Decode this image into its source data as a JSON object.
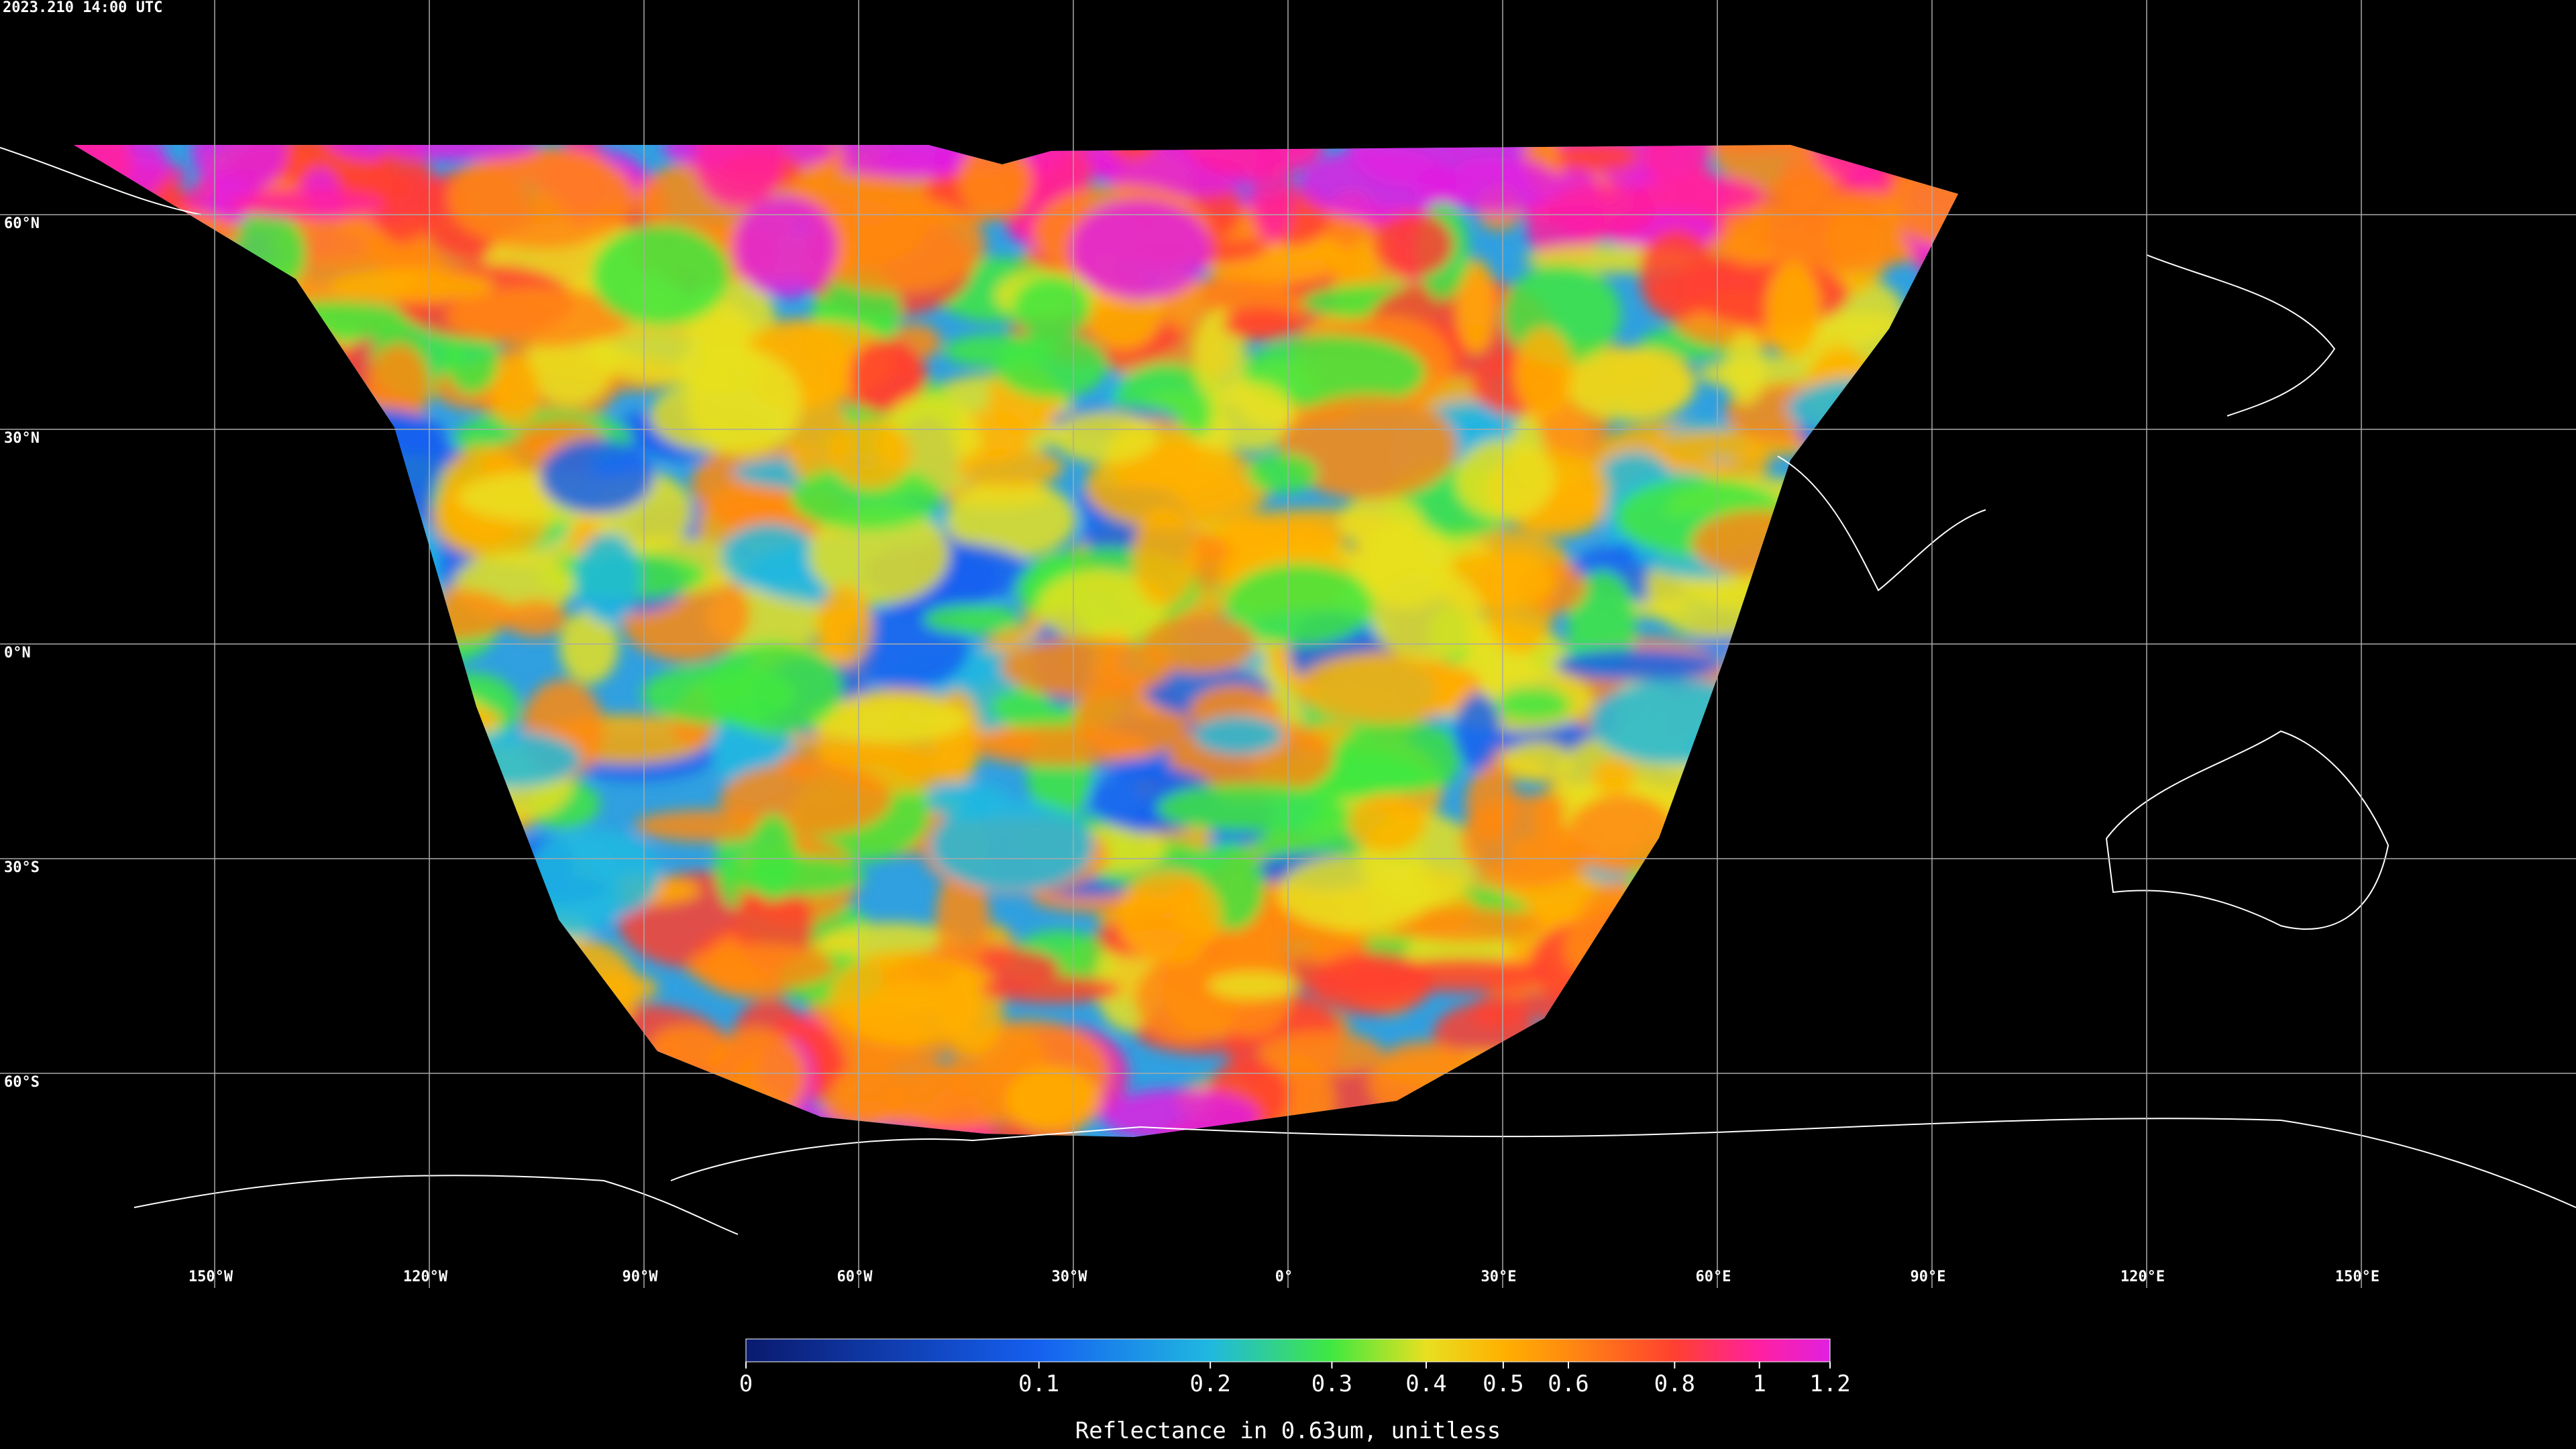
{
  "timestamp": "2023.210 14:00 UTC",
  "map": {
    "latitudes": [
      {
        "value": 60,
        "label": "60°N"
      },
      {
        "value": 30,
        "label": "30°N"
      },
      {
        "value": 0,
        "label": "0°N"
      },
      {
        "value": -30,
        "label": "30°S"
      },
      {
        "value": -60,
        "label": "60°S"
      }
    ],
    "longitudes": [
      {
        "value": -150,
        "label": "150°W"
      },
      {
        "value": -120,
        "label": "120°W"
      },
      {
        "value": -90,
        "label": "90°W"
      },
      {
        "value": -60,
        "label": "60°W"
      },
      {
        "value": -30,
        "label": "30°W"
      },
      {
        "value": 0,
        "label": "0°"
      },
      {
        "value": 30,
        "label": "30°E"
      },
      {
        "value": 60,
        "label": "60°E"
      },
      {
        "value": 90,
        "label": "90°E"
      },
      {
        "value": 120,
        "label": "120°E"
      },
      {
        "value": 150,
        "label": "150°E"
      }
    ]
  },
  "colorbar": {
    "ticks": [
      0,
      0.1,
      0.2,
      0.3,
      0.4,
      0.5,
      0.6,
      0.8,
      1,
      1.2
    ],
    "label": "Reflectance in 0.63um, unitless"
  }
}
